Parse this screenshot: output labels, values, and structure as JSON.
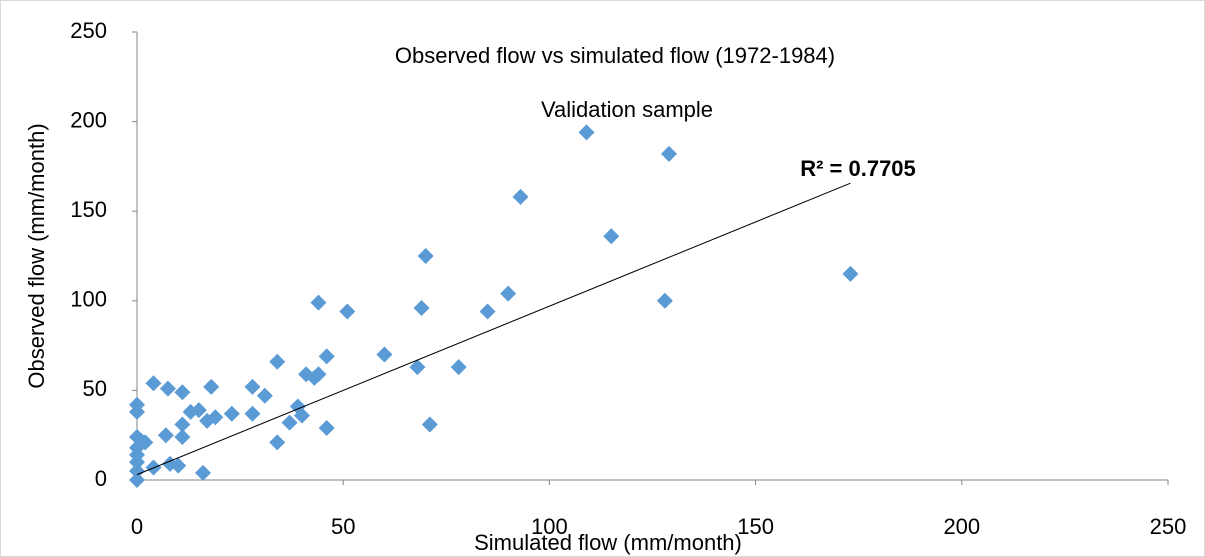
{
  "chart_data": {
    "type": "scatter",
    "title": "Observed flow vs simulated flow (1972-1984)",
    "subtitle": "Validation sample",
    "x_label": "Simulated flow (mm/month)",
    "y_label": "Observed flow (mm/month)",
    "annotation": "R² = 0.7705",
    "annotation_color": "#ff0000",
    "color": "#5b9bd5",
    "trendline": {
      "slope": 0.94,
      "intercept": 3,
      "color": "#000000"
    },
    "xlim": [
      0,
      250
    ],
    "xticks": [
      0,
      50,
      100,
      150,
      200,
      250
    ],
    "ylim": [
      0,
      250
    ],
    "yticks": [
      0,
      50,
      100,
      150,
      200,
      250
    ],
    "grid": false,
    "x": [
      0,
      0,
      0,
      0,
      0,
      0,
      0,
      0,
      1,
      2,
      4,
      4,
      7.5,
      7,
      8,
      10,
      11,
      11,
      11,
      13,
      15,
      16,
      17,
      18,
      19,
      23,
      28,
      28,
      31,
      34,
      34,
      37,
      39,
      40,
      41,
      43,
      44,
      44,
      46,
      46,
      51,
      60,
      68,
      69,
      70,
      71,
      78,
      85,
      90,
      93,
      109,
      115,
      128,
      129,
      173
    ],
    "y": [
      0,
      5,
      10,
      14,
      18,
      42,
      38,
      24,
      22,
      21,
      7,
      54,
      51,
      25,
      9,
      8,
      49,
      31,
      24,
      38,
      39,
      4,
      33,
      52,
      35,
      37,
      52,
      37,
      47,
      21,
      66,
      32,
      41,
      36,
      59,
      57,
      99,
      59,
      69,
      29,
      94,
      70,
      63,
      96,
      125,
      31,
      63,
      94,
      104,
      158,
      194,
      136,
      100,
      182,
      115
    ]
  }
}
